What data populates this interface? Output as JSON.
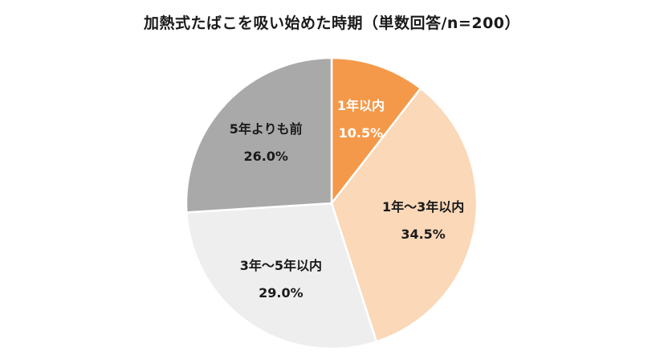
{
  "chart_data": {
    "type": "pie",
    "title": "加熱式たばこを吸い始めた時期（単数回答/n=200）",
    "start_angle_deg": 0,
    "direction": "clockwise",
    "slices": [
      {
        "label": "1年以内",
        "value": 10.5,
        "value_label": "10.5%",
        "color": "#f4994a",
        "label_color": "#ffffff"
      },
      {
        "label": "1年～3年以内",
        "value": 34.5,
        "value_label": "34.5%",
        "color": "#fad8b8",
        "label_color": "#1a1a1a"
      },
      {
        "label": "3年～5年以内",
        "value": 29.0,
        "value_label": "29.0%",
        "color": "#eeeeee",
        "label_color": "#1a1a1a"
      },
      {
        "label": "5年よりも前",
        "value": 26.0,
        "value_label": "26.0%",
        "color": "#a9a9a9",
        "label_color": "#1a1a1a"
      }
    ],
    "slice_border_color": "#ffffff",
    "legend": "none"
  }
}
